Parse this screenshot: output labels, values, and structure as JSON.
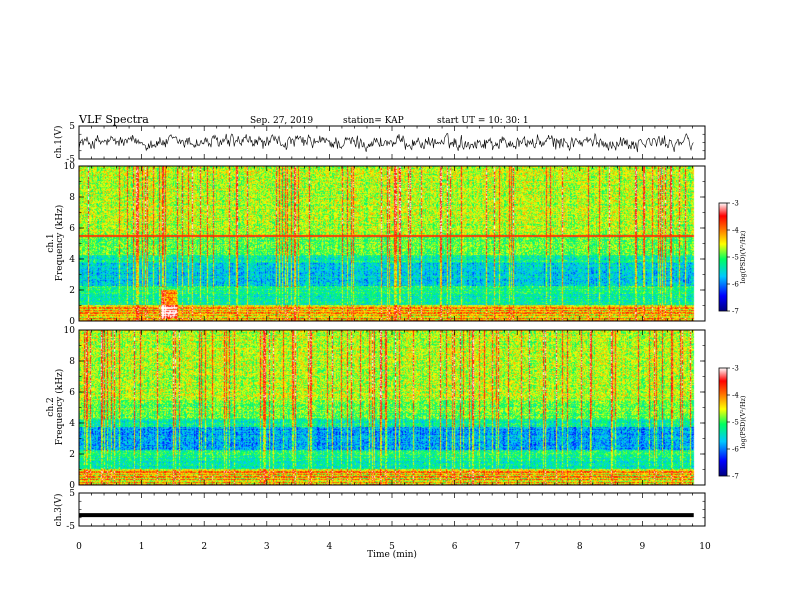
{
  "header": {
    "title": "VLF Spectra",
    "date": "Sep. 27, 2019",
    "station": "station= KAP",
    "start": "start  UT  =   10: 30: 1"
  },
  "chart_data": [
    {
      "type": "line",
      "panel": "ch1-waveform",
      "ylabel": "ch.1(V)",
      "ylim": [
        -5,
        5
      ],
      "yticks": [
        "5",
        "-5"
      ],
      "xlim": [
        0,
        10
      ],
      "data_end_min": 9.82,
      "description_level": "noisy signal around 0 V, amplitude roughly +/-2.5 V"
    },
    {
      "type": "heatmap",
      "panel": "ch1-spectrogram",
      "ylabel": "ch.1\nFrequency  (kHz)",
      "ylim": [
        0,
        10
      ],
      "yticks": [
        "0",
        "2",
        "4",
        "6",
        "8",
        "10"
      ],
      "xlim": [
        0,
        10
      ],
      "colorbar": {
        "label": "log(PSD)(V²/Hz)",
        "range": [
          -7,
          -3
        ],
        "ticks": [
          "-3",
          "-4",
          "-5",
          "-6",
          "-7"
        ]
      }
    },
    {
      "type": "heatmap",
      "panel": "ch2-spectrogram",
      "ylabel": "ch.2\nFrequency  (kHz)",
      "ylim": [
        0,
        10
      ],
      "yticks": [
        "0",
        "2",
        "4",
        "6",
        "8",
        "10"
      ],
      "xlim": [
        0,
        10
      ],
      "colorbar": {
        "label": "log(PSD)(V²/Hz)",
        "range": [
          -7,
          -3
        ],
        "ticks": [
          "-3",
          "-4",
          "-5",
          "-6",
          "-7"
        ]
      }
    },
    {
      "type": "line",
      "panel": "ch3-waveform",
      "ylabel": "ch.3(V)",
      "ylim": [
        -5,
        5
      ],
      "yticks": [
        "5",
        "-5"
      ],
      "xlim": [
        0,
        10
      ],
      "constant_value": -1.7
    }
  ],
  "xaxis": {
    "label": "Time  (min)",
    "ticks": [
      "0",
      "1",
      "2",
      "3",
      "4",
      "5",
      "6",
      "7",
      "8",
      "9",
      "10"
    ]
  },
  "colors": {
    "scale": [
      "#000080",
      "#0000ff",
      "#00c8ff",
      "#00ff80",
      "#ffff00",
      "#ff8000",
      "#ff0000",
      "#ffffff"
    ]
  }
}
